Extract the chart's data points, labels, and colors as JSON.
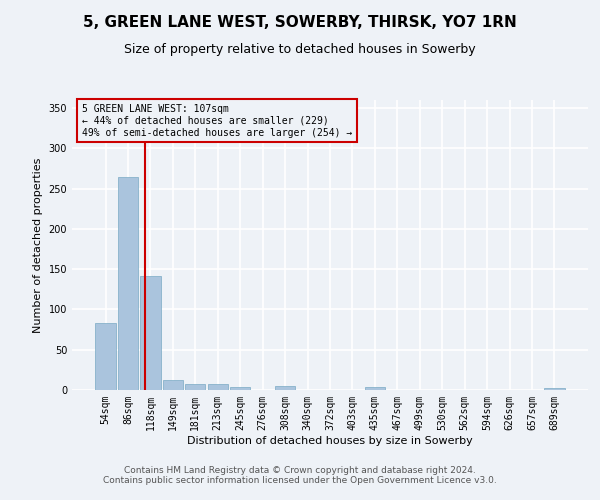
{
  "title": "5, GREEN LANE WEST, SOWERBY, THIRSK, YO7 1RN",
  "subtitle": "Size of property relative to detached houses in Sowerby",
  "xlabel": "Distribution of detached houses by size in Sowerby",
  "ylabel": "Number of detached properties",
  "bar_labels": [
    "54sqm",
    "86sqm",
    "118sqm",
    "149sqm",
    "181sqm",
    "213sqm",
    "245sqm",
    "276sqm",
    "308sqm",
    "340sqm",
    "372sqm",
    "403sqm",
    "435sqm",
    "467sqm",
    "499sqm",
    "530sqm",
    "562sqm",
    "594sqm",
    "626sqm",
    "657sqm",
    "689sqm"
  ],
  "bar_values": [
    83,
    265,
    141,
    13,
    8,
    8,
    4,
    0,
    5,
    0,
    0,
    0,
    4,
    0,
    0,
    0,
    0,
    0,
    0,
    0,
    3
  ],
  "bar_color": "#aac4dd",
  "bar_edge_color": "#7aaac4",
  "ylim": [
    0,
    360
  ],
  "yticks": [
    0,
    50,
    100,
    150,
    200,
    250,
    300,
    350
  ],
  "property_label": "5 GREEN LANE WEST: 107sqm",
  "annotation_line1": "← 44% of detached houses are smaller (229)",
  "annotation_line2": "49% of semi-detached houses are larger (254) →",
  "vline_color": "#cc0000",
  "vline_position": 1.75,
  "background_color": "#eef2f7",
  "grid_color": "#ffffff",
  "title_fontsize": 11,
  "subtitle_fontsize": 9,
  "ylabel_fontsize": 8,
  "xlabel_fontsize": 8,
  "tick_fontsize": 7,
  "footer_fontsize": 6.5,
  "footer_line1": "Contains HM Land Registry data © Crown copyright and database right 2024.",
  "footer_line2": "Contains public sector information licensed under the Open Government Licence v3.0."
}
